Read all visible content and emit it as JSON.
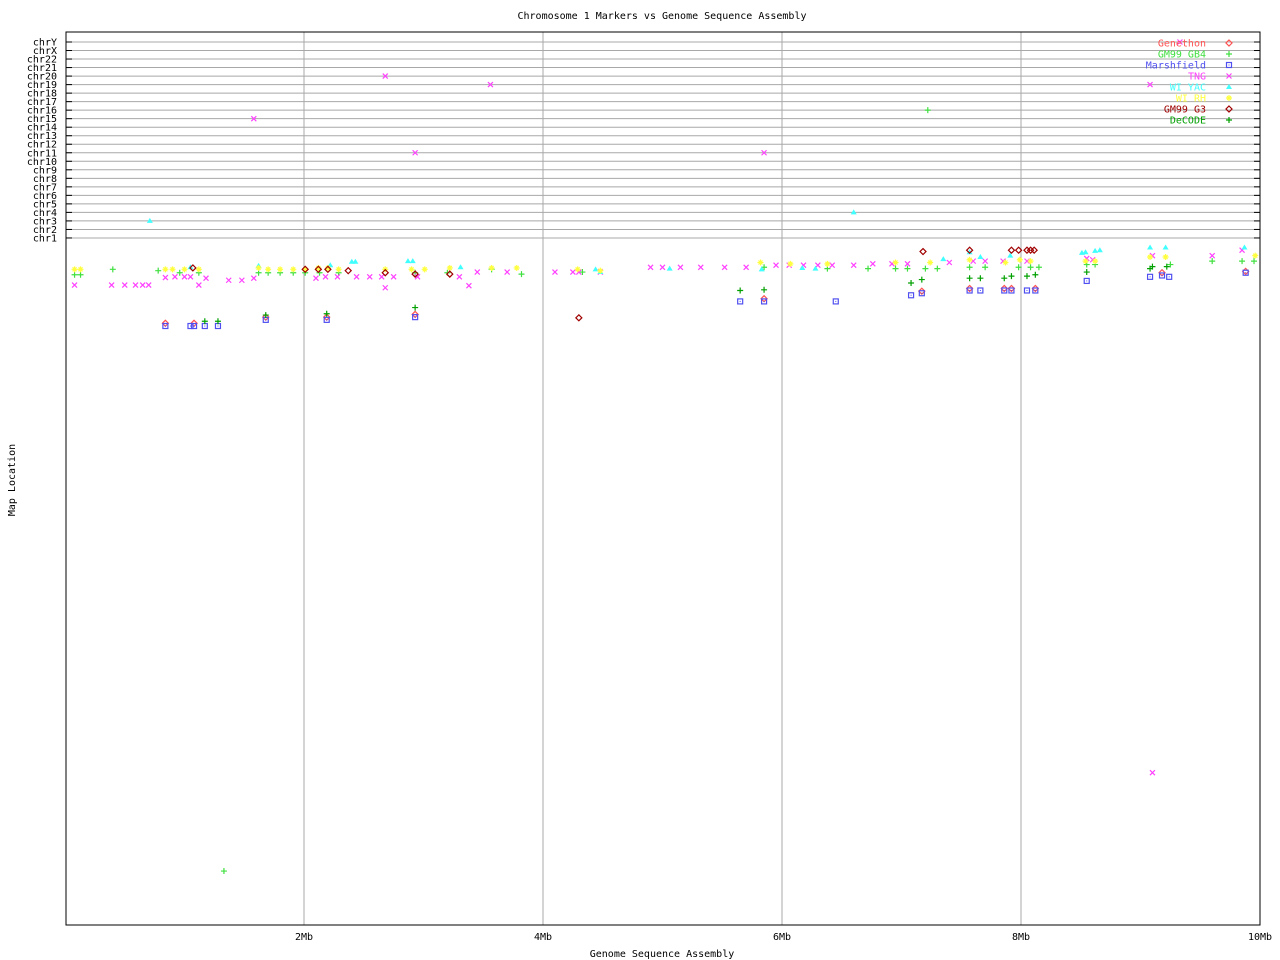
{
  "chart_data": {
    "type": "scatter",
    "title": "Chromosome 1 Markers vs Genome Sequence Assembly",
    "xlabel": "Genome Sequence Assembly",
    "ylabel": "Map Location",
    "xlim": [
      0,
      10
    ],
    "x_unit": "Mb",
    "x_ticks": [
      "2Mb",
      "4Mb",
      "6Mb",
      "8Mb",
      "10Mb"
    ],
    "x_tick_values": [
      2,
      4,
      6,
      8,
      10
    ],
    "y_categories": [
      "chrY",
      "chrX",
      "chr22",
      "chr21",
      "chr20",
      "chr19",
      "chr18",
      "chr17",
      "chr16",
      "chr15",
      "chr14",
      "chr13",
      "chr12",
      "chr11",
      "chr10",
      "chr9",
      "chr8",
      "chr7",
      "chr6",
      "chr5",
      "chr4",
      "chr3",
      "chr2",
      "chr1"
    ],
    "y_chr1_map_location_range": [
      0,
      100
    ],
    "grid": true,
    "legend_position": "top-right",
    "series": [
      {
        "name": "Genethon",
        "color": "#ff5050",
        "marker": "diamond",
        "points": [
          [
            0.84,
            11.9
          ],
          [
            1.08,
            11.9
          ],
          [
            1.68,
            11.0
          ],
          [
            2.19,
            11.0
          ],
          [
            2.93,
            10.6
          ],
          [
            5.85,
            8.3
          ],
          [
            7.17,
            7.2
          ],
          [
            7.57,
            6.8
          ],
          [
            7.86,
            6.8
          ],
          [
            7.92,
            6.8
          ],
          [
            8.12,
            6.8
          ],
          [
            9.18,
            4.5
          ],
          [
            9.88,
            4.3
          ]
        ]
      },
      {
        "name": "GM99 GB4",
        "color": "#40e040",
        "marker": "plus",
        "points": [
          [
            0.08,
            4.8
          ],
          [
            0.13,
            4.8
          ],
          [
            0.4,
            4.0
          ],
          [
            0.78,
            4.2
          ],
          [
            0.96,
            4.5
          ],
          [
            1.12,
            4.5
          ],
          [
            1.62,
            4.5
          ],
          [
            1.7,
            4.5
          ],
          [
            1.8,
            4.5
          ],
          [
            1.91,
            4.5
          ],
          [
            2.01,
            4.5
          ],
          [
            2.13,
            4.5
          ],
          [
            2.29,
            4.5
          ],
          [
            2.93,
            4.5
          ],
          [
            3.2,
            4.5
          ],
          [
            3.57,
            4.0
          ],
          [
            3.82,
            4.7
          ],
          [
            4.33,
            4.4
          ],
          [
            5.85,
            3.7
          ],
          [
            6.38,
            3.9
          ],
          [
            6.72,
            3.9
          ],
          [
            6.95,
            3.9
          ],
          [
            7.05,
            3.9
          ],
          [
            7.2,
            3.9
          ],
          [
            7.3,
            3.9
          ],
          [
            7.57,
            3.7
          ],
          [
            7.7,
            3.7
          ],
          [
            7.98,
            3.7
          ],
          [
            8.08,
            3.7
          ],
          [
            8.15,
            3.7
          ],
          [
            8.55,
            3.3
          ],
          [
            8.62,
            3.3
          ],
          [
            9.25,
            3.3
          ],
          [
            9.6,
            2.8
          ],
          [
            9.85,
            2.8
          ],
          [
            9.95,
            2.8
          ],
          [
            1.33,
            92.1
          ]
        ],
        "off_chr": [
          [
            7.22,
            "chr16"
          ]
        ]
      },
      {
        "name": "Marshfield",
        "color": "#5050f0",
        "marker": "square",
        "points": [
          [
            0.84,
            12.3
          ],
          [
            1.05,
            12.3
          ],
          [
            1.08,
            12.3
          ],
          [
            1.17,
            12.3
          ],
          [
            1.28,
            12.3
          ],
          [
            1.68,
            11.4
          ],
          [
            2.19,
            11.4
          ],
          [
            2.93,
            11.0
          ],
          [
            5.65,
            8.7
          ],
          [
            5.85,
            8.7
          ],
          [
            6.45,
            8.7
          ],
          [
            7.08,
            7.8
          ],
          [
            7.17,
            7.5
          ],
          [
            7.57,
            7.1
          ],
          [
            7.66,
            7.1
          ],
          [
            7.86,
            7.1
          ],
          [
            7.92,
            7.1
          ],
          [
            8.05,
            7.1
          ],
          [
            8.12,
            7.1
          ],
          [
            8.55,
            5.7
          ],
          [
            9.08,
            5.1
          ],
          [
            9.18,
            4.9
          ],
          [
            9.24,
            5.1
          ],
          [
            9.88,
            4.5
          ]
        ]
      },
      {
        "name": "TNG",
        "color": "#ff40ff",
        "marker": "cross",
        "points": [
          [
            0.08,
            6.3
          ],
          [
            0.39,
            6.3
          ],
          [
            0.5,
            6.3
          ],
          [
            0.59,
            6.3
          ],
          [
            0.65,
            6.3
          ],
          [
            0.7,
            6.3
          ],
          [
            0.84,
            5.2
          ],
          [
            0.92,
            5.1
          ],
          [
            1.0,
            5.1
          ],
          [
            1.05,
            5.1
          ],
          [
            1.12,
            6.3
          ],
          [
            1.18,
            5.3
          ],
          [
            1.37,
            5.6
          ],
          [
            1.48,
            5.6
          ],
          [
            1.58,
            5.3
          ],
          [
            2.1,
            5.3
          ],
          [
            2.18,
            5.1
          ],
          [
            2.28,
            5.1
          ],
          [
            2.44,
            5.1
          ],
          [
            2.55,
            5.1
          ],
          [
            2.65,
            5.1
          ],
          [
            2.68,
            6.7
          ],
          [
            2.75,
            5.1
          ],
          [
            2.95,
            5.1
          ],
          [
            3.3,
            5.1
          ],
          [
            3.38,
            6.4
          ],
          [
            3.45,
            4.4
          ],
          [
            3.7,
            4.4
          ],
          [
            4.1,
            4.4
          ],
          [
            4.25,
            4.4
          ],
          [
            4.3,
            4.4
          ],
          [
            4.48,
            4.4
          ],
          [
            4.9,
            3.7
          ],
          [
            5.0,
            3.7
          ],
          [
            5.15,
            3.7
          ],
          [
            5.32,
            3.7
          ],
          [
            5.52,
            3.7
          ],
          [
            5.7,
            3.7
          ],
          [
            5.95,
            3.4
          ],
          [
            6.06,
            3.4
          ],
          [
            6.18,
            3.4
          ],
          [
            6.3,
            3.4
          ],
          [
            6.42,
            3.4
          ],
          [
            6.6,
            3.4
          ],
          [
            6.76,
            3.2
          ],
          [
            6.92,
            3.2
          ],
          [
            7.05,
            3.2
          ],
          [
            7.4,
            3.0
          ],
          [
            7.6,
            2.8
          ],
          [
            7.7,
            2.8
          ],
          [
            7.85,
            2.8
          ],
          [
            8.05,
            2.8
          ],
          [
            8.55,
            2.4
          ],
          [
            8.6,
            2.6
          ],
          [
            9.1,
            2.0
          ],
          [
            9.6,
            2.0
          ],
          [
            9.85,
            1.2
          ],
          [
            9.1,
            77.7
          ]
        ],
        "off_chr": [
          [
            1.58,
            "chr15"
          ],
          [
            2.68,
            "chr20"
          ],
          [
            3.56,
            "chr19"
          ],
          [
            9.33,
            "chrY"
          ],
          [
            9.08,
            "chr19"
          ],
          [
            2.93,
            "chr11"
          ],
          [
            5.85,
            "chr11"
          ]
        ]
      },
      {
        "name": "WI YAC",
        "color": "#40ffff",
        "marker": "triangle",
        "points": [
          [
            1.05,
            3.7
          ],
          [
            1.62,
            3.5
          ],
          [
            2.22,
            3.4
          ],
          [
            2.4,
            2.9
          ],
          [
            2.43,
            2.9
          ],
          [
            2.87,
            2.8
          ],
          [
            2.91,
            2.8
          ],
          [
            3.31,
            3.7
          ],
          [
            4.44,
            4.0
          ],
          [
            4.48,
            4.4
          ],
          [
            5.06,
            3.9
          ],
          [
            5.83,
            4.0
          ],
          [
            6.17,
            3.8
          ],
          [
            6.28,
            3.9
          ],
          [
            7.35,
            2.5
          ],
          [
            7.57,
            1.5
          ],
          [
            7.66,
            2.2
          ],
          [
            7.91,
            2.0
          ],
          [
            8.51,
            1.6
          ],
          [
            8.54,
            1.5
          ],
          [
            8.62,
            1.3
          ],
          [
            8.66,
            1.2
          ],
          [
            9.08,
            0.8
          ],
          [
            9.21,
            0.8
          ],
          [
            9.87,
            0.8
          ]
        ],
        "off_chr": [
          [
            0.71,
            "chr3"
          ],
          [
            6.6,
            "chr4"
          ]
        ]
      },
      {
        "name": "WI RH",
        "color": "#ffff40",
        "marker": "star",
        "points": [
          [
            0.08,
            4.0
          ],
          [
            0.13,
            4.0
          ],
          [
            0.84,
            4.0
          ],
          [
            0.9,
            4.0
          ],
          [
            1.0,
            4.0
          ],
          [
            1.12,
            4.0
          ],
          [
            1.62,
            3.8
          ],
          [
            1.7,
            4.0
          ],
          [
            1.8,
            4.0
          ],
          [
            1.91,
            4.0
          ],
          [
            2.01,
            4.0
          ],
          [
            2.12,
            3.8
          ],
          [
            2.2,
            3.8
          ],
          [
            2.29,
            4.0
          ],
          [
            2.68,
            4.0
          ],
          [
            2.9,
            4.0
          ],
          [
            3.01,
            4.0
          ],
          [
            3.22,
            3.8
          ],
          [
            3.57,
            3.8
          ],
          [
            3.78,
            3.8
          ],
          [
            4.29,
            4.0
          ],
          [
            4.48,
            4.2
          ],
          [
            5.82,
            3.0
          ],
          [
            6.07,
            3.2
          ],
          [
            6.38,
            3.2
          ],
          [
            6.95,
            3.0
          ],
          [
            7.24,
            3.0
          ],
          [
            7.57,
            2.6
          ],
          [
            7.87,
            3.0
          ],
          [
            7.99,
            2.6
          ],
          [
            8.08,
            2.8
          ],
          [
            8.54,
            2.8
          ],
          [
            8.62,
            2.8
          ],
          [
            9.08,
            2.2
          ],
          [
            9.21,
            2.2
          ],
          [
            9.96,
            2.0
          ]
        ]
      },
      {
        "name": "GM99 G3",
        "color": "#a00000",
        "marker": "diamond",
        "points": [
          [
            1.07,
            3.8
          ],
          [
            2.01,
            4.0
          ],
          [
            2.12,
            4.0
          ],
          [
            2.2,
            4.0
          ],
          [
            2.37,
            4.2
          ],
          [
            2.68,
            4.5
          ],
          [
            2.93,
            4.7
          ],
          [
            3.22,
            4.7
          ],
          [
            4.3,
            11.1
          ],
          [
            7.18,
            1.4
          ],
          [
            7.57,
            1.2
          ],
          [
            7.92,
            1.2
          ],
          [
            7.98,
            1.2
          ],
          [
            8.05,
            1.2
          ],
          [
            8.08,
            1.2
          ],
          [
            8.11,
            1.2
          ]
        ]
      },
      {
        "name": "DeCODE",
        "color": "#00a000",
        "marker": "plus",
        "points": [
          [
            1.17,
            11.6
          ],
          [
            1.28,
            11.6
          ],
          [
            1.68,
            10.7
          ],
          [
            2.19,
            10.5
          ],
          [
            2.93,
            9.6
          ],
          [
            5.65,
            7.1
          ],
          [
            5.85,
            7.0
          ],
          [
            7.08,
            6.0
          ],
          [
            7.17,
            5.5
          ],
          [
            7.57,
            5.3
          ],
          [
            7.66,
            5.3
          ],
          [
            7.86,
            5.3
          ],
          [
            7.92,
            5.0
          ],
          [
            8.05,
            5.0
          ],
          [
            8.12,
            4.8
          ],
          [
            8.55,
            4.4
          ],
          [
            9.08,
            3.9
          ],
          [
            9.1,
            3.6
          ],
          [
            9.22,
            3.6
          ]
        ]
      }
    ]
  }
}
